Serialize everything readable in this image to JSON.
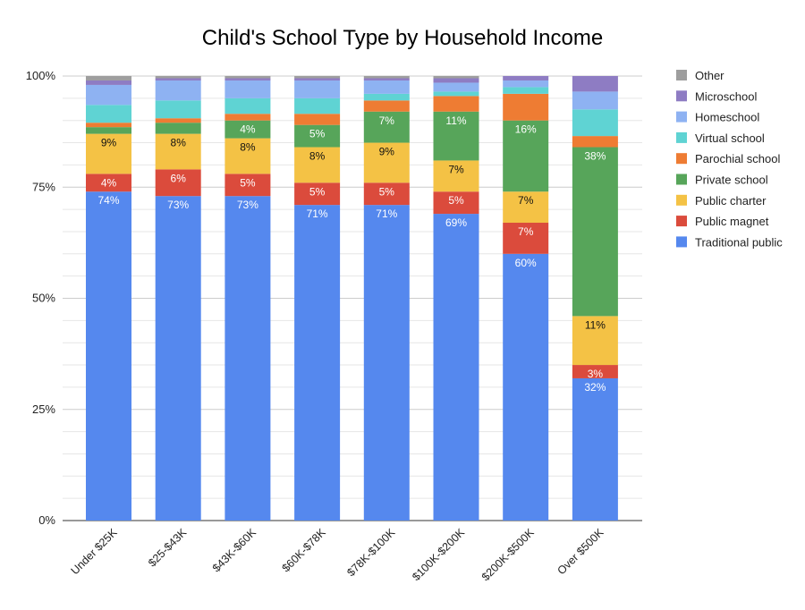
{
  "chart_data": {
    "type": "bar",
    "stacked": true,
    "normalized": true,
    "title": "Child's School Type by Household Income",
    "xlabel": "",
    "ylabel": "",
    "ylim": [
      0,
      100
    ],
    "y_ticks": [
      "0%",
      "25%",
      "50%",
      "75%",
      "100%"
    ],
    "grid": true,
    "legend_position": "right",
    "categories": [
      "Under $25K",
      "$25-$43K",
      "$43K-$60K",
      "$60K-$78K",
      "$78K-$100K",
      "$100K-$200K",
      "$200K-$500K",
      "Over $500K"
    ],
    "series": [
      {
        "name": "Traditional public",
        "color": "#5588ee",
        "values": [
          74,
          73,
          73,
          71,
          71,
          69,
          60,
          32
        ],
        "labels": [
          "74%",
          "73%",
          "73%",
          "71%",
          "71%",
          "69%",
          "60%",
          "32%"
        ],
        "label_color": "#ffffff"
      },
      {
        "name": "Public magnet",
        "color": "#db4b3c",
        "values": [
          4,
          6,
          5,
          5,
          5,
          5,
          7,
          3
        ],
        "labels": [
          "4%",
          "6%",
          "5%",
          "5%",
          "5%",
          "5%",
          "7%",
          "3%"
        ],
        "label_color": "#ffffff"
      },
      {
        "name": "Public charter",
        "color": "#f4c245",
        "values": [
          9,
          8,
          8,
          8,
          9,
          7,
          7,
          11
        ],
        "labels": [
          "9%",
          "8%",
          "8%",
          "8%",
          "9%",
          "7%",
          "7%",
          "11%"
        ],
        "label_color": "#111111"
      },
      {
        "name": "Private school",
        "color": "#57a55a",
        "values": [
          1.5,
          2.5,
          4,
          5,
          7,
          11,
          16,
          38
        ],
        "labels": [
          "",
          "",
          "4%",
          "5%",
          "7%",
          "11%",
          "16%",
          "38%"
        ],
        "label_color": "#ffffff"
      },
      {
        "name": "Parochial school",
        "color": "#ee7c33",
        "values": [
          1,
          1,
          1.5,
          2.5,
          2.5,
          3.5,
          6,
          2.5
        ],
        "labels": [
          "",
          "",
          "",
          "",
          "",
          "",
          "",
          ""
        ],
        "label_color": "#ffffff"
      },
      {
        "name": "Virtual school",
        "color": "#5fd3d3",
        "values": [
          4,
          4,
          3.5,
          3.5,
          1.5,
          1,
          1.5,
          6
        ],
        "labels": [
          "",
          "",
          "",
          "",
          "",
          "",
          "",
          ""
        ],
        "label_color": "#ffffff"
      },
      {
        "name": "Homeschool",
        "color": "#8eb2f2",
        "values": [
          4.5,
          4.5,
          4,
          4,
          3,
          2,
          1.5,
          4
        ],
        "labels": [
          "",
          "",
          "",
          "",
          "",
          "",
          "",
          ""
        ],
        "label_color": "#ffffff"
      },
      {
        "name": "Microschool",
        "color": "#8e7cc3",
        "values": [
          1,
          0.5,
          0.5,
          0.5,
          0.5,
          1,
          1,
          3.5
        ],
        "labels": [
          "",
          "",
          "",
          "",
          "",
          "",
          "",
          ""
        ],
        "label_color": "#ffffff"
      },
      {
        "name": "Other",
        "color": "#9e9e9e",
        "values": [
          1,
          0.5,
          0.5,
          0.5,
          0.5,
          0.5,
          0,
          0
        ],
        "labels": [
          "",
          "",
          "",
          "",
          "",
          "",
          "",
          ""
        ],
        "label_color": "#ffffff"
      }
    ],
    "legend_order": [
      "Other",
      "Microschool",
      "Homeschool",
      "Virtual school",
      "Parochial school",
      "Private school",
      "Public charter",
      "Public magnet",
      "Traditional public"
    ]
  }
}
